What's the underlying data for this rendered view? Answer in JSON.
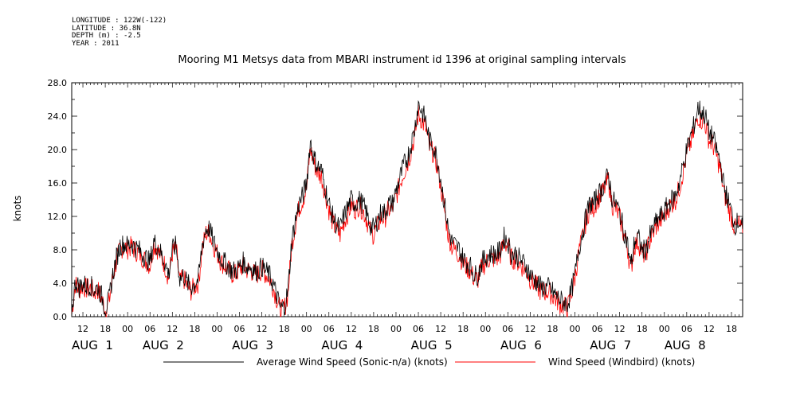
{
  "header": {
    "longitude": "LONGITUDE : 122W(-122)",
    "latitude": "LATITUDE : 36.8N",
    "depth": "DEPTH (m) : -2.5",
    "year": "YEAR : 2011"
  },
  "chart_data": {
    "type": "line",
    "title": "Mooring M1 Metsys data from MBARI instrument id 1396 at original sampling intervals",
    "ylabel": "knots",
    "ylim": [
      0,
      28
    ],
    "yticks": [
      "0.0",
      "4.0",
      "8.0",
      "12.0",
      "16.0",
      "20.0",
      "24.0",
      "28.0"
    ],
    "xlim_hours": [
      9,
      189
    ],
    "x_hour_ticks": [
      {
        "h": 12,
        "label": "12"
      },
      {
        "h": 18,
        "label": "18"
      },
      {
        "h": 24,
        "label": "00"
      },
      {
        "h": 30,
        "label": "06"
      },
      {
        "h": 36,
        "label": "12"
      },
      {
        "h": 42,
        "label": "18"
      },
      {
        "h": 48,
        "label": "00"
      },
      {
        "h": 54,
        "label": "06"
      },
      {
        "h": 60,
        "label": "12"
      },
      {
        "h": 66,
        "label": "18"
      },
      {
        "h": 72,
        "label": "00"
      },
      {
        "h": 78,
        "label": "06"
      },
      {
        "h": 84,
        "label": "12"
      },
      {
        "h": 90,
        "label": "18"
      },
      {
        "h": 96,
        "label": "00"
      },
      {
        "h": 102,
        "label": "06"
      },
      {
        "h": 108,
        "label": "12"
      },
      {
        "h": 114,
        "label": "18"
      },
      {
        "h": 120,
        "label": "00"
      },
      {
        "h": 126,
        "label": "06"
      },
      {
        "h": 132,
        "label": "12"
      },
      {
        "h": 138,
        "label": "18"
      },
      {
        "h": 144,
        "label": "00"
      },
      {
        "h": 150,
        "label": "06"
      },
      {
        "h": 156,
        "label": "12"
      },
      {
        "h": 162,
        "label": "18"
      },
      {
        "h": 168,
        "label": "00"
      },
      {
        "h": 174,
        "label": "06"
      },
      {
        "h": 180,
        "label": "12"
      },
      {
        "h": 186,
        "label": "18"
      }
    ],
    "date_labels": [
      {
        "h": 9,
        "label": "AUG  1"
      },
      {
        "h": 28,
        "label": "AUG  2"
      },
      {
        "h": 52,
        "label": "AUG  3"
      },
      {
        "h": 76,
        "label": "AUG  4"
      },
      {
        "h": 100,
        "label": "AUG  5"
      },
      {
        "h": 124,
        "label": "AUG  6"
      },
      {
        "h": 148,
        "label": "AUG  7"
      },
      {
        "h": 168,
        "label": "AUG  8"
      }
    ],
    "x_hour_tick_labels_shown": [
      "12",
      "18",
      "00",
      "06",
      "12",
      "18",
      "00",
      "06",
      "12",
      "18",
      "00",
      "06",
      "12",
      "18",
      "00",
      "06",
      "12",
      "18",
      "00",
      "06",
      "12",
      "18",
      "00",
      "06",
      "12",
      "18",
      "00",
      "06"
    ],
    "series": [
      {
        "name": "Average Wind Speed (Sonic-n/a) (knots)",
        "color": "#000000",
        "x_hours": [
          9,
          10,
          11,
          12,
          13,
          14,
          15,
          16,
          17,
          18,
          19,
          20,
          21,
          22,
          23,
          24,
          25,
          26,
          27,
          28,
          29,
          30,
          31,
          32,
          33,
          34,
          35,
          36,
          37,
          38,
          39,
          40,
          41,
          42,
          43,
          44,
          45,
          46,
          47,
          48,
          49,
          50,
          51,
          52,
          53,
          54,
          55,
          56,
          57,
          58,
          59,
          60,
          61,
          62,
          63,
          64,
          65,
          66,
          67,
          68,
          69,
          70,
          71,
          72,
          73,
          74,
          75,
          76,
          77,
          78,
          79,
          80,
          81,
          82,
          83,
          84,
          85,
          86,
          87,
          88,
          89,
          90,
          91,
          92,
          93,
          94,
          95,
          96,
          97,
          98,
          99,
          100,
          101,
          102,
          103,
          104,
          105,
          106,
          107,
          108,
          109,
          110,
          111,
          112,
          113,
          114,
          115,
          116,
          117,
          118,
          119,
          120,
          121,
          122,
          123,
          124,
          125,
          126,
          127,
          128,
          129,
          130,
          131,
          132,
          133,
          134,
          135,
          136,
          137,
          138,
          139,
          140,
          141,
          142,
          143,
          144,
          145,
          146,
          147,
          148,
          149,
          150,
          151,
          152,
          153,
          154,
          155,
          156,
          157,
          158,
          159,
          160,
          161,
          162,
          163,
          164,
          165,
          166,
          167,
          168,
          169,
          170,
          171,
          172,
          173,
          174,
          175,
          176,
          177,
          178,
          179,
          180,
          181,
          182,
          183,
          184,
          185,
          186,
          187,
          188,
          189
        ],
        "values": [
          0.5,
          4.2,
          3.5,
          4.0,
          3.6,
          3.8,
          3.2,
          3.5,
          2.5,
          1.0,
          2.0,
          5.0,
          7.0,
          8.5,
          8.7,
          8.5,
          8.8,
          8.3,
          8.0,
          7.5,
          7.0,
          6.5,
          9.0,
          8.5,
          7.5,
          6.5,
          5.0,
          8.0,
          8.5,
          4.5,
          5.0,
          4.0,
          3.5,
          4.0,
          4.5,
          8.5,
          10.5,
          10.5,
          9.0,
          8.0,
          7.0,
          6.5,
          6.0,
          5.5,
          5.5,
          6.0,
          6.5,
          6.0,
          6.0,
          5.5,
          5.5,
          6.0,
          5.5,
          5.0,
          4.0,
          2.5,
          1.0,
          1.2,
          3.0,
          9.0,
          11.5,
          13.5,
          14.5,
          16.0,
          21.0,
          19.0,
          18.0,
          17.5,
          15.5,
          13.5,
          12.0,
          11.0,
          10.5,
          12.0,
          13.0,
          14.0,
          13.5,
          14.0,
          13.5,
          12.5,
          11.0,
          10.5,
          11.5,
          12.5,
          12.5,
          13.5,
          13.5,
          15.0,
          16.5,
          18.0,
          19.0,
          20.5,
          22.5,
          25.5,
          24.5,
          23.5,
          21.0,
          20.5,
          19.0,
          16.5,
          13.5,
          10.5,
          9.0,
          8.5,
          8.0,
          7.0,
          6.5,
          6.0,
          5.0,
          5.0,
          6.5,
          7.0,
          7.5,
          7.5,
          7.5,
          8.0,
          9.5,
          9.0,
          7.5,
          7.5,
          7.0,
          6.5,
          6.0,
          5.0,
          4.5,
          4.0,
          3.5,
          3.5,
          3.5,
          3.0,
          2.5,
          2.0,
          1.8,
          1.5,
          3.0,
          5.0,
          8.0,
          10.0,
          12.0,
          13.5,
          13.5,
          14.5,
          15.0,
          16.0,
          17.0,
          14.0,
          13.5,
          12.5,
          10.5,
          9.0,
          6.0,
          9.0,
          9.5,
          8.0,
          8.0,
          9.5,
          10.5,
          11.5,
          12.0,
          12.5,
          13.5,
          14.0,
          14.5,
          16.0,
          18.0,
          20.0,
          21.5,
          23.0,
          25.0,
          24.5,
          24.0,
          22.0,
          21.5,
          20.0,
          18.5,
          15.5,
          14.0,
          12.5,
          11.0,
          11.5,
          10.5
        ]
      },
      {
        "name": "Wind Speed (Windbird) (knots)",
        "color": "#ff0000",
        "x_hours": [
          9,
          10,
          11,
          12,
          13,
          14,
          15,
          16,
          17,
          18,
          19,
          20,
          21,
          22,
          23,
          24,
          25,
          26,
          27,
          28,
          29,
          30,
          31,
          32,
          33,
          34,
          35,
          36,
          37,
          38,
          39,
          40,
          41,
          42,
          43,
          44,
          45,
          46,
          47,
          48,
          49,
          50,
          51,
          52,
          53,
          54,
          55,
          56,
          57,
          58,
          59,
          60,
          61,
          62,
          63,
          64,
          65,
          66,
          67,
          68,
          69,
          70,
          71,
          72,
          73,
          74,
          75,
          76,
          77,
          78,
          79,
          80,
          81,
          82,
          83,
          84,
          85,
          86,
          87,
          88,
          89,
          90,
          91,
          92,
          93,
          94,
          95,
          96,
          97,
          98,
          99,
          100,
          101,
          102,
          103,
          104,
          105,
          106,
          107,
          108,
          109,
          110,
          111,
          112,
          113,
          114,
          115,
          116,
          117,
          118,
          119,
          120,
          121,
          122,
          123,
          124,
          125,
          126,
          127,
          128,
          129,
          130,
          131,
          132,
          133,
          134,
          135,
          136,
          137,
          138,
          139,
          140,
          141,
          142,
          143,
          144,
          145,
          146,
          147,
          148,
          149,
          150,
          151,
          152,
          153,
          154,
          155,
          156,
          157,
          158,
          159,
          160,
          161,
          162,
          163,
          164,
          165,
          166,
          167,
          168,
          169,
          170,
          171,
          172,
          173,
          174,
          175,
          176,
          177,
          178,
          179,
          180,
          181,
          182,
          183,
          184,
          185,
          186,
          187,
          188,
          189
        ],
        "values": [
          0.4,
          3.9,
          3.2,
          3.7,
          3.3,
          3.5,
          2.9,
          3.2,
          2.2,
          0.8,
          1.7,
          4.7,
          6.6,
          8.1,
          8.3,
          8.1,
          8.4,
          7.9,
          7.6,
          7.1,
          6.6,
          6.1,
          8.6,
          8.1,
          7.1,
          6.1,
          4.6,
          7.6,
          8.1,
          4.1,
          4.6,
          3.6,
          3.1,
          3.6,
          4.1,
          8.1,
          10.0,
          10.0,
          8.6,
          7.6,
          6.6,
          6.1,
          5.6,
          5.1,
          5.1,
          5.6,
          6.1,
          5.6,
          5.6,
          5.1,
          5.1,
          5.6,
          5.1,
          4.6,
          3.6,
          2.1,
          0.7,
          0.9,
          2.6,
          8.5,
          11.0,
          13.0,
          14.0,
          15.3,
          20.2,
          18.3,
          17.2,
          16.8,
          14.8,
          12.8,
          11.3,
          10.3,
          9.8,
          11.3,
          12.3,
          13.3,
          12.8,
          13.3,
          12.8,
          11.8,
          10.3,
          9.8,
          10.8,
          11.8,
          11.8,
          12.8,
          12.8,
          14.3,
          15.8,
          17.2,
          18.2,
          19.7,
          21.6,
          24.3,
          23.4,
          22.5,
          20.1,
          19.6,
          18.1,
          15.7,
          12.8,
          9.8,
          8.4,
          7.9,
          7.4,
          6.4,
          5.9,
          5.4,
          4.5,
          4.5,
          5.9,
          6.4,
          6.9,
          6.9,
          6.9,
          7.4,
          8.9,
          8.4,
          6.9,
          6.9,
          6.4,
          5.9,
          5.4,
          4.5,
          4.0,
          3.5,
          3.0,
          3.0,
          3.0,
          2.5,
          2.0,
          1.5,
          1.3,
          1.0,
          2.6,
          4.6,
          7.6,
          9.5,
          11.5,
          13.0,
          13.0,
          14.0,
          14.5,
          15.4,
          16.4,
          13.4,
          12.9,
          11.9,
          10.0,
          8.5,
          5.5,
          8.5,
          9.0,
          7.5,
          7.5,
          9.0,
          10.0,
          11.0,
          11.5,
          12.0,
          13.0,
          13.5,
          14.0,
          15.4,
          17.3,
          19.3,
          20.7,
          22.1,
          24.0,
          23.5,
          23.0,
          21.1,
          20.6,
          19.2,
          17.7,
          14.8,
          13.4,
          11.9,
          10.5,
          11.0,
          10.0
        ]
      }
    ],
    "legend": {
      "placement": "bottom"
    },
    "grid": false
  }
}
